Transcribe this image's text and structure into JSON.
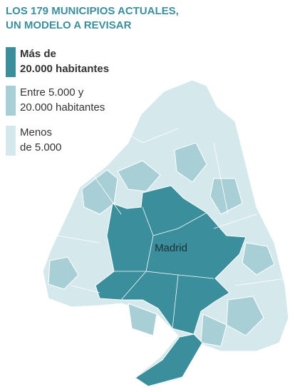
{
  "title": {
    "lines": [
      "LOS 179 MUNICIPIOS ACTUALES,",
      "UN MODELO A REVISAR"
    ]
  },
  "legend": [
    {
      "lines": [
        "Más de",
        "20.000 habitantes"
      ],
      "color": "#3b8e9b"
    },
    {
      "lines": [
        "Entre 5.000 y",
        "20.000 habitantes"
      ],
      "color": "#a8cfd5"
    },
    {
      "lines": [
        "Menos",
        "de 5.000"
      ],
      "color": "#d5e9ec"
    }
  ],
  "map": {
    "label": "Madrid"
  }
}
